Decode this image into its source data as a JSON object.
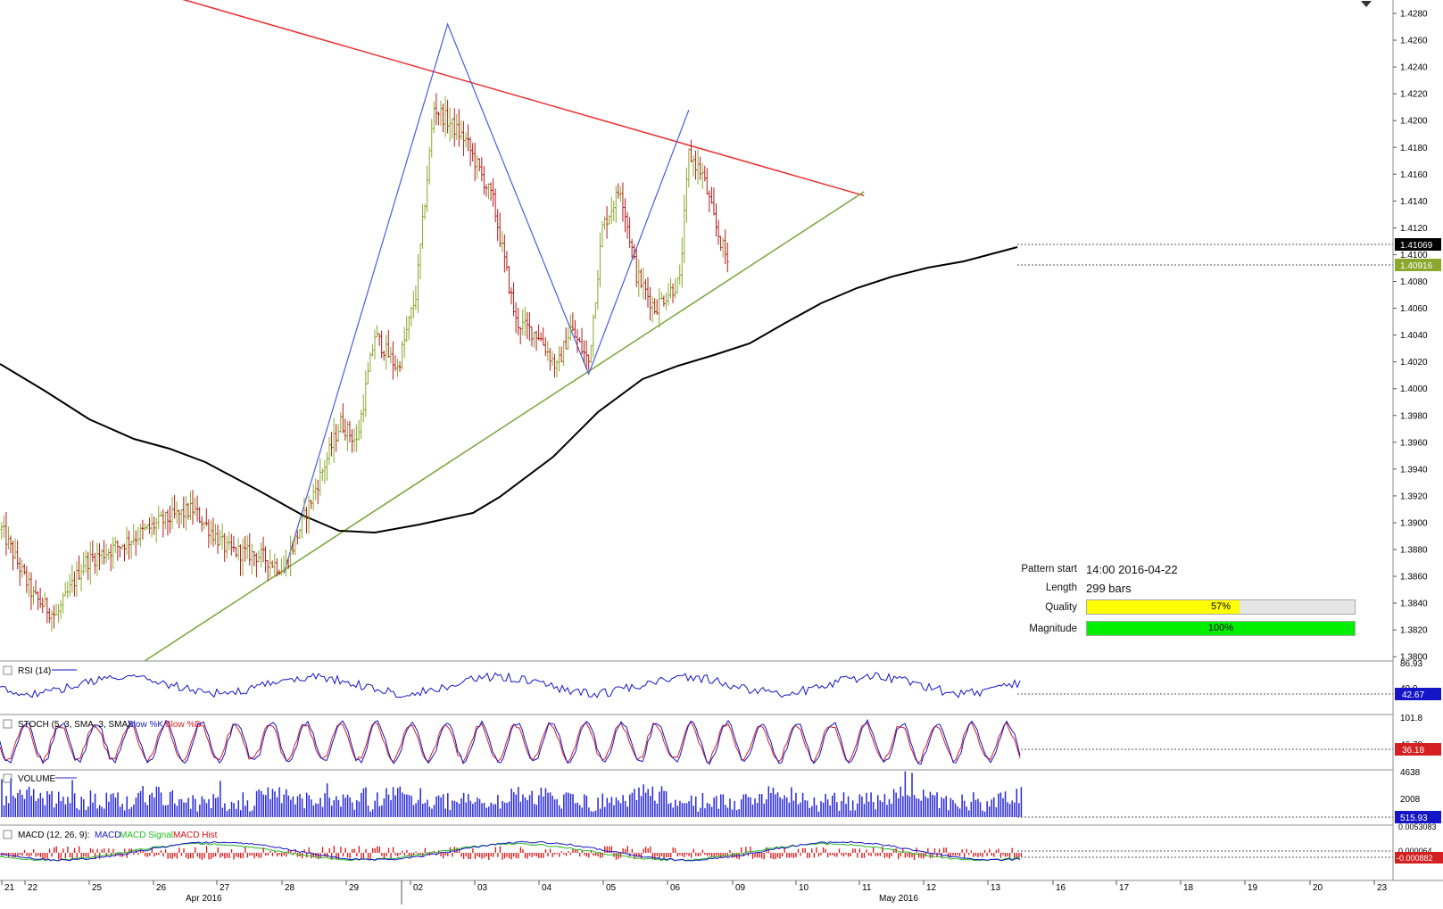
{
  "chart_data": {
    "type": "candlestick",
    "price_axis": {
      "ticks": [
        "1.4280",
        "1.4260",
        "1.4240",
        "1.4220",
        "1.4200",
        "1.4180",
        "1.4160",
        "1.4140",
        "1.4120",
        "1.4100",
        "1.4080",
        "1.4060",
        "1.4040",
        "1.4020",
        "1.4000",
        "1.3980",
        "1.3960",
        "1.3940",
        "1.3920",
        "1.3900",
        "1.3880",
        "1.3860",
        "1.3840",
        "1.3820",
        "1.3800"
      ],
      "range": [
        1.3795,
        1.429
      ]
    },
    "price_labels": {
      "black": "1.41069",
      "green": "1.40916"
    },
    "time_axis": {
      "day_labels": [
        "21",
        "22",
        "25",
        "26",
        "27",
        "28",
        "29",
        "02",
        "03",
        "04",
        "05",
        "06",
        "09",
        "10",
        "11",
        "12",
        "13",
        "16",
        "17",
        "18",
        "19",
        "20",
        "23"
      ],
      "month_labels": [
        "Apr 2016",
        "May 2016"
      ]
    },
    "zigzag": [
      {
        "bar": 0,
        "price": 1.3862
      },
      {
        "bar": 72,
        "price": 1.4272
      },
      {
        "bar": 134,
        "price": 1.4011
      },
      {
        "bar": 178,
        "price": 1.4208
      }
    ],
    "resistance_line": {
      "start": {
        "bar": -64,
        "price": 1.43
      },
      "end": {
        "bar": 255,
        "price": 1.4144
      }
    },
    "support_line": {
      "start": {
        "bar": -61,
        "price": 1.3797
      },
      "end": {
        "bar": 255,
        "price": 1.4147
      }
    },
    "pattern": {
      "start_label": "Pattern start",
      "start": "14:00 2016-04-22",
      "length_label": "Length",
      "length": "299 bars",
      "quality_label": "Quality",
      "quality": "57%",
      "quality_value": 57,
      "magnitude_label": "Magnitude",
      "magnitude": "100%",
      "magnitude_value": 100
    },
    "indicators": {
      "rsi": {
        "title": "RSI (14)",
        "ticks": [
          "86.93",
          "40.0"
        ],
        "value": "42.67"
      },
      "stoch": {
        "title": "STOCH (5, 3, SMA, 3, SMA): ",
        "series": [
          "Slow %K",
          "Slow %D"
        ],
        "ticks": [
          "101.8",
          "46.78"
        ],
        "value": "36.18"
      },
      "volume": {
        "title": "VOLUME",
        "ticks": [
          "4638",
          "2008"
        ],
        "value": "515.93"
      },
      "macd": {
        "title": "MACD (12, 26, 9): ",
        "series": [
          "MACD",
          "MACD Signal",
          "MACD Hist"
        ],
        "ticks": [
          "0.0053083",
          "0.000064"
        ],
        "value": "-0.000882"
      }
    }
  },
  "colors": {
    "up": "#8aa82c",
    "down": "#b31b1b",
    "resistance": "#ec2f2f",
    "support": "#7aa63c",
    "zigzag": "#4b5be6",
    "ma": "#000000",
    "rsi": "#1515c8",
    "stoch_k": "#1515c8",
    "stoch_d": "#d42020",
    "volume": "#2727d6",
    "macd": "#1515c8",
    "signal": "#22bb22",
    "hist": "#dd1111",
    "quality": "#ffff00",
    "magnitude": "#00ee00"
  }
}
